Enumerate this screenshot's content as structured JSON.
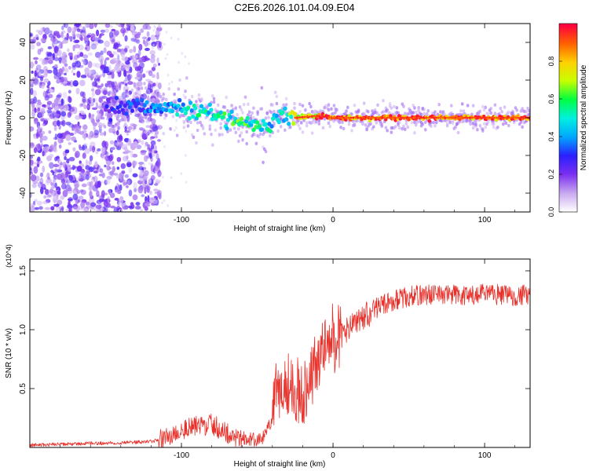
{
  "figure_title": "C2E6.2026.101.04.09.E04",
  "chart_data": [
    {
      "type": "heatmap",
      "title": "C2E6.2026.101.04.09.E04",
      "xlabel": "Height of straight line (km)",
      "ylabel": "Frequency (Hz)",
      "xlim": [
        -200,
        130
      ],
      "ylim": [
        -50,
        50
      ],
      "xticks": [
        -100,
        0,
        100
      ],
      "xtick_labels": [
        "-100",
        "0",
        "100"
      ],
      "yticks": [
        -40,
        -20,
        0,
        20,
        40
      ],
      "ytick_labels": [
        "-40",
        "-20",
        "0",
        "20",
        "40"
      ],
      "colorbar": {
        "label": "Normalized spectral amplitude",
        "range": [
          0.0,
          1.0
        ],
        "ticks": [
          0.0,
          0.2,
          0.4,
          0.6,
          0.8
        ],
        "tick_labels": [
          "0.0",
          "0.2",
          "0.4",
          "0.6",
          "0.8"
        ],
        "colormap": [
          "#ffffff",
          "#c8a8f0",
          "#7b2ff0",
          "#2a20ff",
          "#00a8ff",
          "#00f0e0",
          "#00ff40",
          "#c8ff00",
          "#ffd000",
          "#ff6000",
          "#ff0040"
        ]
      },
      "description_series": [
        {
          "name": "noise_region",
          "x_range": [
            -200,
            -120
          ],
          "frequency_range": [
            -50,
            50
          ],
          "amplitude": 0.15
        },
        {
          "name": "signal_ridge",
          "x": [
            -150,
            -120,
            -100,
            -80,
            -60,
            -45,
            -35,
            -25,
            -10,
            0,
            20,
            60,
            100,
            130
          ],
          "frequency": [
            5,
            6,
            5,
            2,
            -2,
            -5,
            3,
            0,
            1,
            0,
            0,
            0,
            0,
            0
          ],
          "amplitude": [
            0.25,
            0.35,
            0.45,
            0.5,
            0.55,
            0.5,
            0.4,
            0.7,
            0.85,
            0.9,
            0.95,
            0.95,
            0.95,
            0.95
          ]
        }
      ]
    },
    {
      "type": "line",
      "xlabel": "Height of straight line (km)",
      "ylabel": "SNR (10 * v/v)",
      "y_multiplier": "(x10^4)",
      "xlim": [
        -200,
        130
      ],
      "ylim": [
        0,
        1.6
      ],
      "xticks": [
        -100,
        0,
        100
      ],
      "xtick_labels": [
        "-100",
        "0",
        "100"
      ],
      "yticks": [
        0.5,
        1.0,
        1.5
      ],
      "ytick_labels": [
        "0.5",
        "1.0",
        "1.5"
      ],
      "series": [
        {
          "name": "SNR",
          "color": "#e8302a",
          "x": [
            -200,
            -170,
            -140,
            -120,
            -110,
            -100,
            -90,
            -80,
            -70,
            -60,
            -50,
            -45,
            -40,
            -35,
            -30,
            -25,
            -20,
            -15,
            -10,
            -5,
            0,
            5,
            10,
            15,
            20,
            30,
            40,
            50,
            60,
            70,
            80,
            90,
            100,
            110,
            120,
            130
          ],
          "y": [
            0.02,
            0.03,
            0.04,
            0.05,
            0.08,
            0.15,
            0.18,
            0.2,
            0.12,
            0.08,
            0.06,
            0.1,
            0.25,
            0.5,
            0.55,
            0.5,
            0.45,
            0.6,
            0.75,
            0.85,
            0.9,
            0.95,
            1.0,
            1.05,
            1.1,
            1.2,
            1.25,
            1.28,
            1.3,
            1.3,
            1.3,
            1.28,
            1.3,
            1.3,
            1.29,
            1.3
          ]
        }
      ]
    }
  ]
}
